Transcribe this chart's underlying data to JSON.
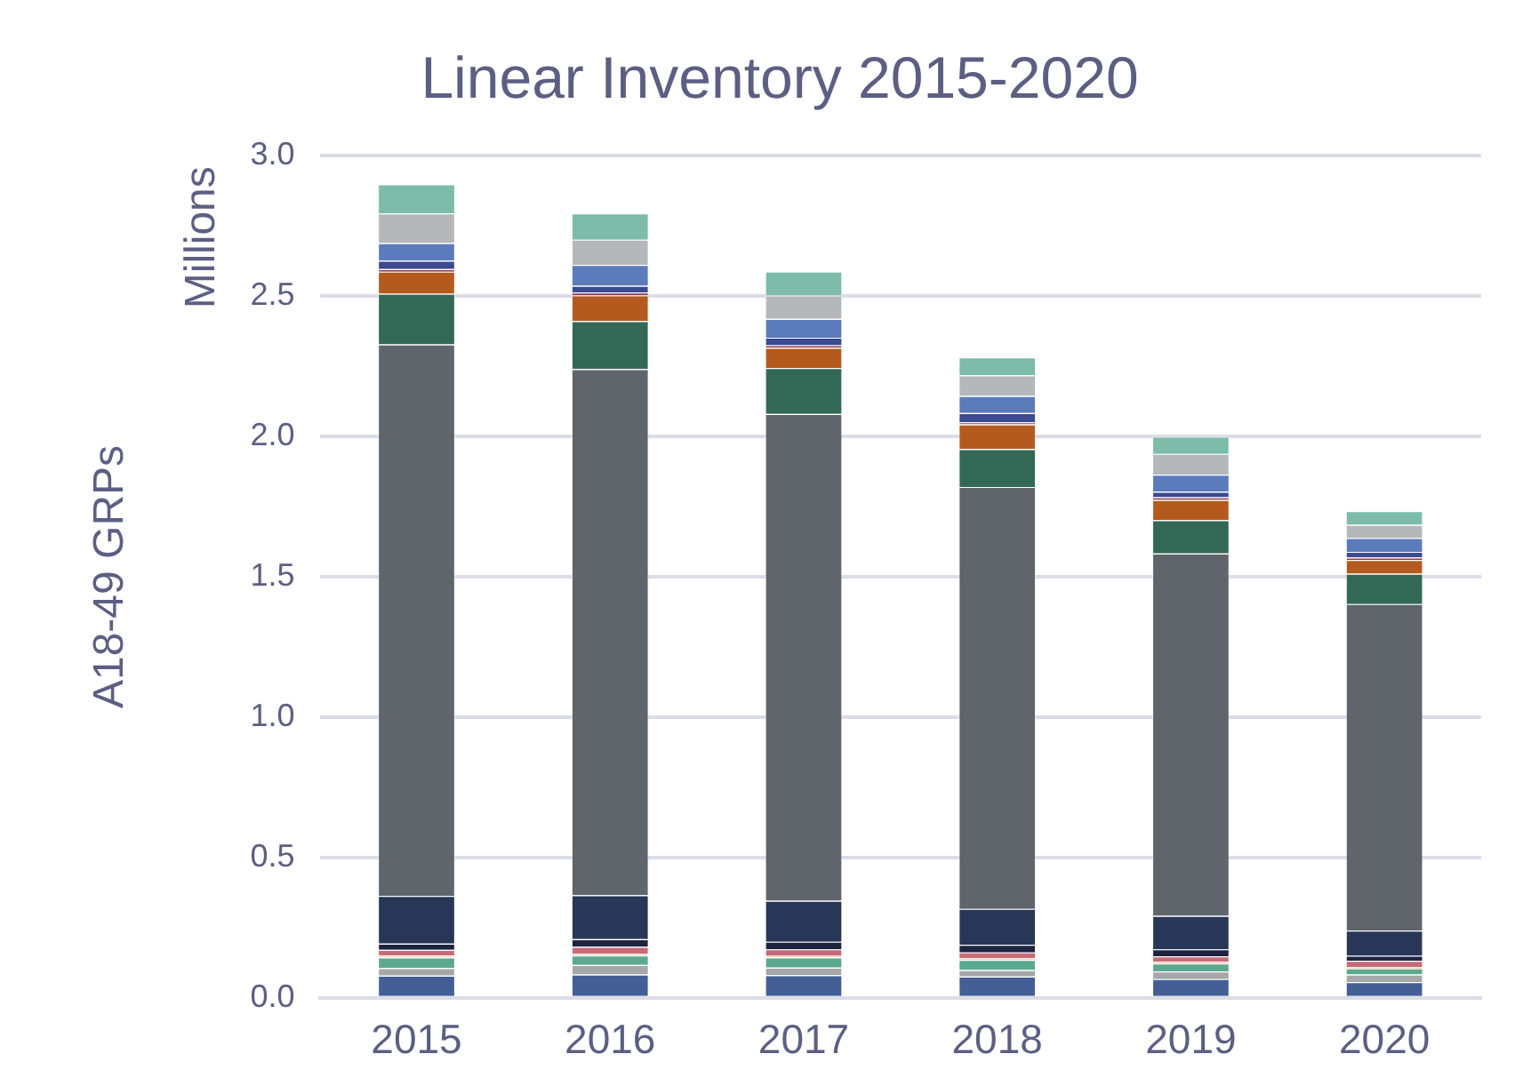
{
  "chart_data": {
    "type": "bar",
    "title": "Linear Inventory 2015-2020",
    "ylabel": "A18-49 GRPs",
    "annotations": [
      "Millions"
    ],
    "stacked": true,
    "grid": "y",
    "categories": [
      "2015",
      "2016",
      "2017",
      "2018",
      "2019",
      "2020"
    ],
    "ylim": [
      0,
      3
    ],
    "yticks": [
      {
        "value": 0,
        "label": "0.0"
      },
      {
        "value": 0.5,
        "label": "0.5"
      },
      {
        "value": 1,
        "label": "1.0"
      },
      {
        "value": 1.5,
        "label": "1.5"
      },
      {
        "value": 2,
        "label": "2.0"
      },
      {
        "value": 2.5,
        "label": "2.5"
      },
      {
        "value": 3,
        "label": "3.0"
      }
    ],
    "series": [
      {
        "color": "#445f96",
        "values": [
          0.079,
          0.083,
          0.081,
          0.076,
          0.067,
          0.056
        ]
      },
      {
        "color": "#a5a7a8",
        "values": [
          0.027,
          0.034,
          0.027,
          0.023,
          0.027,
          0.027
        ]
      },
      {
        "color": "#5ba98f",
        "values": [
          0.038,
          0.034,
          0.036,
          0.036,
          0.029,
          0.022
        ]
      },
      {
        "color": "#f0b89a",
        "values": [
          0.007,
          0.006,
          0.006,
          0.006,
          0.006,
          0.005
        ]
      },
      {
        "color": "#c96a78",
        "values": [
          0.02,
          0.025,
          0.023,
          0.021,
          0.019,
          0.022
        ]
      },
      {
        "color": "#1e2440",
        "values": [
          0.022,
          0.027,
          0.027,
          0.027,
          0.025,
          0.018
        ]
      },
      {
        "color": "#283757",
        "values": [
          0.17,
          0.157,
          0.146,
          0.128,
          0.119,
          0.09
        ]
      },
      {
        "color": "#5f656a",
        "values": [
          1.965,
          1.874,
          1.734,
          1.503,
          1.291,
          1.163
        ]
      },
      {
        "color": "#336857",
        "values": [
          0.18,
          0.171,
          0.164,
          0.135,
          0.119,
          0.108
        ]
      },
      {
        "color": "#b55a1e",
        "values": [
          0.079,
          0.092,
          0.072,
          0.088,
          0.072,
          0.049
        ]
      },
      {
        "color": "#8e3a4a",
        "values": [
          0.009,
          0.01,
          0.009,
          0.008,
          0.009,
          0.009
        ]
      },
      {
        "color": "#3c4a8f",
        "values": [
          0.03,
          0.024,
          0.027,
          0.032,
          0.02,
          0.02
        ]
      },
      {
        "color": "#5b7bbb",
        "values": [
          0.063,
          0.074,
          0.067,
          0.061,
          0.061,
          0.049
        ]
      },
      {
        "color": "#b5b8ba",
        "values": [
          0.106,
          0.09,
          0.083,
          0.074,
          0.074,
          0.047
        ]
      },
      {
        "color": "#7cbca8",
        "values": [
          0.103,
          0.094,
          0.085,
          0.064,
          0.061,
          0.049
        ]
      }
    ]
  }
}
